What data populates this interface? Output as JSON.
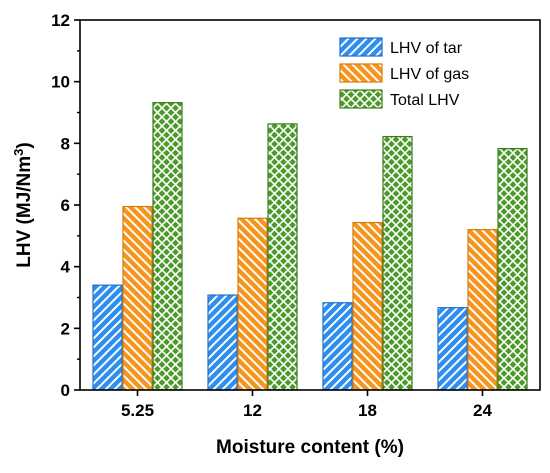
{
  "chart_data": {
    "type": "bar",
    "title": "",
    "xlabel": "Moisture content (%)",
    "ylabel": "LHV (MJ/Nm",
    "ylabel_sup": "3",
    "ylabel_end": ")",
    "categories": [
      "5.25",
      "12",
      "18",
      "24"
    ],
    "series": [
      {
        "name": "LHV of tar",
        "values": [
          3.4,
          3.08,
          2.83,
          2.67
        ],
        "fill": "#2e8ff0",
        "stroke": "#1f6fc8",
        "pattern": "diagonal-up"
      },
      {
        "name": "LHV of gas",
        "values": [
          5.95,
          5.57,
          5.43,
          5.2
        ],
        "fill": "#f7941d",
        "stroke": "#d77a0a",
        "pattern": "diagonal-down"
      },
      {
        "name": "Total LHV",
        "values": [
          9.32,
          8.63,
          8.22,
          7.83
        ],
        "fill": "#4c9a2a",
        "stroke": "#3a7d1e",
        "pattern": "crosshatch"
      }
    ],
    "ylim": [
      0,
      12
    ],
    "yticks": [
      "0",
      "2",
      "4",
      "6",
      "8",
      "10",
      "12"
    ],
    "grid": false,
    "legend": "top-right"
  }
}
